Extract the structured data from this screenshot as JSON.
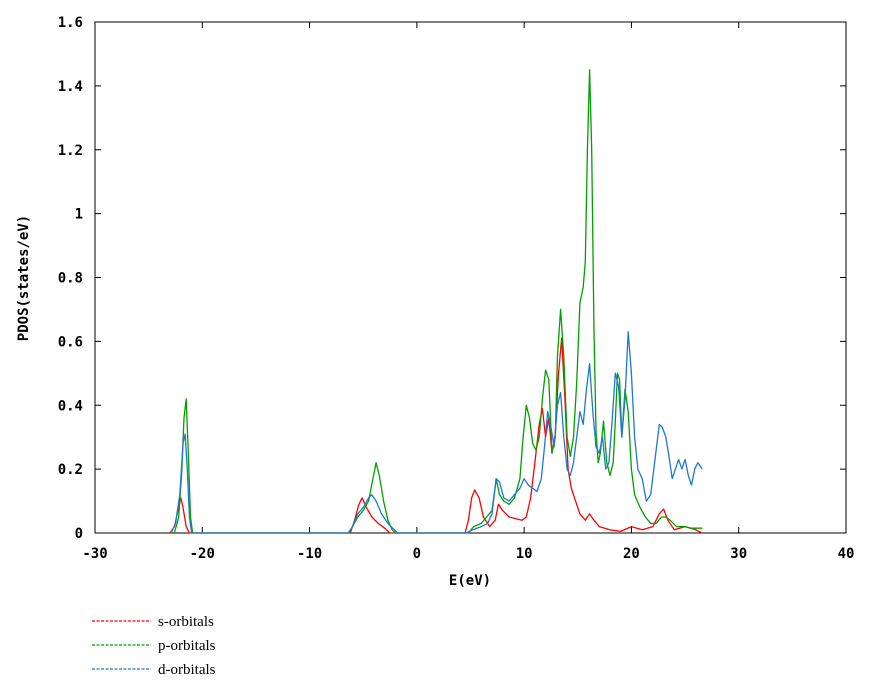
{
  "chart_data": {
    "type": "line",
    "title": "",
    "xlabel": "E(eV)",
    "ylabel": "PDOS(states/eV)",
    "xlim": [
      -30,
      40
    ],
    "ylim": [
      0,
      1.6
    ],
    "x_ticks": [
      "-30",
      "-20",
      "-10",
      "0",
      "10",
      "20",
      "30",
      "40"
    ],
    "y_ticks": [
      "0",
      "0.2",
      "0.4",
      "0.6",
      "0.8",
      "1",
      "1.2",
      "1.4",
      "1.6"
    ],
    "grid": false,
    "legend_position": "bottom-left, outside plot",
    "series": [
      {
        "name": "s-orbitals",
        "color": "#ff0000",
        "points": [
          [
            -23,
            0
          ],
          [
            -22.6,
            0.02
          ],
          [
            -22.2,
            0.08
          ],
          [
            -22,
            0.11
          ],
          [
            -21.8,
            0.08
          ],
          [
            -21.5,
            0.02
          ],
          [
            -21.2,
            0
          ],
          [
            -6.2,
            0
          ],
          [
            -5.8,
            0.04
          ],
          [
            -5.4,
            0.09
          ],
          [
            -5.1,
            0.11
          ],
          [
            -4.7,
            0.08
          ],
          [
            -4.2,
            0.05
          ],
          [
            -3.6,
            0.03
          ],
          [
            -3,
            0.015
          ],
          [
            -2.5,
            0
          ],
          [
            4.5,
            0
          ],
          [
            4.8,
            0.04
          ],
          [
            5.1,
            0.11
          ],
          [
            5.4,
            0.135
          ],
          [
            5.8,
            0.11
          ],
          [
            6.2,
            0.05
          ],
          [
            6.8,
            0.02
          ],
          [
            7.3,
            0.04
          ],
          [
            7.6,
            0.09
          ],
          [
            8,
            0.07
          ],
          [
            8.6,
            0.05
          ],
          [
            9.2,
            0.045
          ],
          [
            9.8,
            0.04
          ],
          [
            10.2,
            0.05
          ],
          [
            10.6,
            0.11
          ],
          [
            11,
            0.22
          ],
          [
            11.4,
            0.34
          ],
          [
            11.7,
            0.39
          ],
          [
            12,
            0.3
          ],
          [
            12.3,
            0.36
          ],
          [
            12.6,
            0.25
          ],
          [
            12.9,
            0.31
          ],
          [
            13.2,
            0.5
          ],
          [
            13.5,
            0.61
          ],
          [
            13.8,
            0.42
          ],
          [
            14.1,
            0.2
          ],
          [
            14.4,
            0.14
          ],
          [
            14.8,
            0.1
          ],
          [
            15.2,
            0.06
          ],
          [
            15.7,
            0.04
          ],
          [
            16.1,
            0.06
          ],
          [
            16.5,
            0.04
          ],
          [
            17,
            0.02
          ],
          [
            18,
            0.01
          ],
          [
            19,
            0.005
          ],
          [
            20,
            0.02
          ],
          [
            21,
            0.01
          ],
          [
            22,
            0.02
          ],
          [
            22.6,
            0.06
          ],
          [
            23,
            0.075
          ],
          [
            23.4,
            0.04
          ],
          [
            24,
            0.01
          ],
          [
            25,
            0.02
          ],
          [
            26,
            0.01
          ],
          [
            26.6,
            0
          ]
        ]
      },
      {
        "name": "p-orbitals",
        "color": "#00a000",
        "points": [
          [
            -22.6,
            0
          ],
          [
            -22.2,
            0.05
          ],
          [
            -21.9,
            0.2
          ],
          [
            -21.7,
            0.36
          ],
          [
            -21.5,
            0.42
          ],
          [
            -21.3,
            0.25
          ],
          [
            -21.1,
            0.05
          ],
          [
            -20.9,
            0
          ],
          [
            -6.3,
            0
          ],
          [
            -6,
            0.02
          ],
          [
            -5.5,
            0.05
          ],
          [
            -5,
            0.07
          ],
          [
            -4.5,
            0.1
          ],
          [
            -4.1,
            0.17
          ],
          [
            -3.8,
            0.22
          ],
          [
            -3.5,
            0.18
          ],
          [
            -3.1,
            0.1
          ],
          [
            -2.7,
            0.04
          ],
          [
            -2.3,
            0.01
          ],
          [
            -2,
            0
          ],
          [
            4.8,
            0
          ],
          [
            5.3,
            0.02
          ],
          [
            6,
            0.03
          ],
          [
            6.5,
            0.05
          ],
          [
            7,
            0.07
          ],
          [
            7.4,
            0.17
          ],
          [
            7.7,
            0.12
          ],
          [
            8.1,
            0.1
          ],
          [
            8.6,
            0.09
          ],
          [
            9.1,
            0.11
          ],
          [
            9.6,
            0.17
          ],
          [
            9.9,
            0.3
          ],
          [
            10.2,
            0.4
          ],
          [
            10.5,
            0.36
          ],
          [
            10.8,
            0.28
          ],
          [
            11.1,
            0.26
          ],
          [
            11.4,
            0.3
          ],
          [
            11.7,
            0.42
          ],
          [
            12,
            0.51
          ],
          [
            12.3,
            0.48
          ],
          [
            12.6,
            0.25
          ],
          [
            12.9,
            0.3
          ],
          [
            13.1,
            0.55
          ],
          [
            13.4,
            0.7
          ],
          [
            13.7,
            0.55
          ],
          [
            14,
            0.3
          ],
          [
            14.3,
            0.24
          ],
          [
            14.6,
            0.3
          ],
          [
            14.9,
            0.47
          ],
          [
            15.2,
            0.72
          ],
          [
            15.5,
            0.77
          ],
          [
            15.7,
            0.85
          ],
          [
            15.9,
            1.2
          ],
          [
            16.1,
            1.45
          ],
          [
            16.3,
            1.2
          ],
          [
            16.5,
            0.65
          ],
          [
            16.7,
            0.32
          ],
          [
            16.9,
            0.22
          ],
          [
            17.1,
            0.25
          ],
          [
            17.4,
            0.35
          ],
          [
            17.7,
            0.22
          ],
          [
            18,
            0.18
          ],
          [
            18.3,
            0.22
          ],
          [
            18.5,
            0.35
          ],
          [
            18.7,
            0.5
          ],
          [
            18.9,
            0.48
          ],
          [
            19.1,
            0.3
          ],
          [
            19.4,
            0.45
          ],
          [
            19.7,
            0.38
          ],
          [
            20,
            0.2
          ],
          [
            20.3,
            0.12
          ],
          [
            20.8,
            0.08
          ],
          [
            21.3,
            0.05
          ],
          [
            21.8,
            0.03
          ],
          [
            22.3,
            0.03
          ],
          [
            22.8,
            0.05
          ],
          [
            23.2,
            0.05
          ],
          [
            23.6,
            0.04
          ],
          [
            24.2,
            0.02
          ],
          [
            25,
            0.02
          ],
          [
            25.6,
            0.015
          ],
          [
            26.2,
            0.015
          ],
          [
            26.6,
            0.015
          ]
        ]
      },
      {
        "name": "d-orbitals",
        "color": "#1f77d4",
        "points": [
          [
            -22.9,
            0
          ],
          [
            -22.5,
            0.03
          ],
          [
            -22.1,
            0.12
          ],
          [
            -21.8,
            0.28
          ],
          [
            -21.6,
            0.31
          ],
          [
            -21.4,
            0.2
          ],
          [
            -21.2,
            0.05
          ],
          [
            -21,
            0
          ],
          [
            -6.4,
            0
          ],
          [
            -6,
            0.02
          ],
          [
            -5.5,
            0.06
          ],
          [
            -5,
            0.08
          ],
          [
            -4.5,
            0.11
          ],
          [
            -4.2,
            0.12
          ],
          [
            -3.8,
            0.1
          ],
          [
            -3.3,
            0.06
          ],
          [
            -2.7,
            0.03
          ],
          [
            -2.1,
            0.01
          ],
          [
            -1.8,
            0
          ],
          [
            4.6,
            0
          ],
          [
            5.2,
            0.01
          ],
          [
            6,
            0.02
          ],
          [
            6.6,
            0.03
          ],
          [
            7,
            0.06
          ],
          [
            7.4,
            0.17
          ],
          [
            7.7,
            0.16
          ],
          [
            8.1,
            0.11
          ],
          [
            8.6,
            0.1
          ],
          [
            9.1,
            0.12
          ],
          [
            9.6,
            0.14
          ],
          [
            10,
            0.17
          ],
          [
            10.4,
            0.15
          ],
          [
            10.8,
            0.14
          ],
          [
            11.2,
            0.13
          ],
          [
            11.6,
            0.17
          ],
          [
            11.9,
            0.27
          ],
          [
            12.2,
            0.38
          ],
          [
            12.5,
            0.33
          ],
          [
            12.8,
            0.27
          ],
          [
            13.1,
            0.4
          ],
          [
            13.4,
            0.44
          ],
          [
            13.7,
            0.3
          ],
          [
            14,
            0.2
          ],
          [
            14.3,
            0.18
          ],
          [
            14.6,
            0.22
          ],
          [
            14.9,
            0.3
          ],
          [
            15.2,
            0.38
          ],
          [
            15.5,
            0.34
          ],
          [
            15.8,
            0.45
          ],
          [
            16.1,
            0.53
          ],
          [
            16.4,
            0.38
          ],
          [
            16.7,
            0.27
          ],
          [
            17,
            0.25
          ],
          [
            17.3,
            0.3
          ],
          [
            17.6,
            0.2
          ],
          [
            17.9,
            0.22
          ],
          [
            18.2,
            0.35
          ],
          [
            18.5,
            0.5
          ],
          [
            18.8,
            0.46
          ],
          [
            19.1,
            0.3
          ],
          [
            19.4,
            0.42
          ],
          [
            19.7,
            0.63
          ],
          [
            20,
            0.5
          ],
          [
            20.3,
            0.3
          ],
          [
            20.6,
            0.2
          ],
          [
            21,
            0.17
          ],
          [
            21.4,
            0.1
          ],
          [
            21.8,
            0.12
          ],
          [
            22.2,
            0.23
          ],
          [
            22.6,
            0.34
          ],
          [
            22.9,
            0.33
          ],
          [
            23.2,
            0.3
          ],
          [
            23.5,
            0.24
          ],
          [
            23.8,
            0.17
          ],
          [
            24.1,
            0.2
          ],
          [
            24.4,
            0.23
          ],
          [
            24.7,
            0.2
          ],
          [
            25,
            0.23
          ],
          [
            25.3,
            0.18
          ],
          [
            25.6,
            0.15
          ],
          [
            25.9,
            0.2
          ],
          [
            26.2,
            0.22
          ],
          [
            26.6,
            0.2
          ]
        ]
      }
    ]
  }
}
